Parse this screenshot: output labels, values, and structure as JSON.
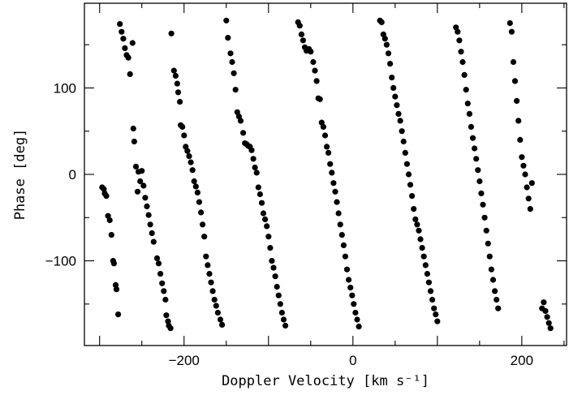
{
  "chart_data": {
    "type": "scatter",
    "title": "",
    "xlabel": "Doppler Velocity [km s⁻¹]",
    "ylabel": "Phase [deg]",
    "xlim": [
      -318,
      253
    ],
    "ylim": [
      -198,
      198
    ],
    "x_ticks": [
      -200,
      0,
      200
    ],
    "y_ticks": [
      -100,
      0,
      100
    ],
    "x_tick_labels": [
      "−200",
      "0",
      "200"
    ],
    "y_tick_labels": [
      "−100",
      "0",
      "100"
    ],
    "grid": false,
    "marker_color": "#000000",
    "series": [
      {
        "points": [
          [
            -297,
            -15
          ],
          [
            -295,
            -17
          ],
          [
            -294,
            -22
          ],
          [
            -292,
            -25
          ],
          [
            -290,
            -48
          ],
          [
            -288,
            -53
          ],
          [
            -286,
            -70
          ],
          [
            -284,
            -100
          ],
          [
            -283,
            -103
          ],
          [
            -281,
            -128
          ],
          [
            -280,
            -133
          ],
          [
            -278,
            -162
          ],
          [
            -276,
            174
          ],
          [
            -274,
            165
          ],
          [
            -272,
            157
          ],
          [
            -270,
            146
          ],
          [
            -268,
            138
          ],
          [
            -266,
            135
          ],
          [
            -264,
            116
          ],
          [
            -261,
            152
          ],
          [
            -260,
            53
          ],
          [
            -259,
            38
          ],
          [
            -257,
            9
          ],
          [
            -255,
            -20
          ],
          [
            -254,
            3
          ],
          [
            -252,
            -8
          ],
          [
            -250,
            4
          ],
          [
            -248,
            -13
          ],
          [
            -246,
            -27
          ],
          [
            -244,
            -37
          ],
          [
            -242,
            -47
          ],
          [
            -240,
            -58
          ],
          [
            -238,
            -68
          ],
          [
            -236,
            -78
          ],
          [
            -232,
            -97
          ],
          [
            -230,
            -103
          ],
          [
            -228,
            -115
          ],
          [
            -226,
            -126
          ],
          [
            -224,
            -135
          ],
          [
            -222,
            -145
          ],
          [
            -221,
            -163
          ],
          [
            -219,
            -170
          ],
          [
            -218,
            -175
          ],
          [
            -216,
            -178
          ],
          [
            -215,
            163
          ],
          [
            -212,
            120
          ],
          [
            -210,
            114
          ],
          [
            -208,
            105
          ],
          [
            -207,
            95
          ],
          [
            -205,
            84
          ],
          [
            -204,
            57
          ],
          [
            -202,
            55
          ],
          [
            -200,
            45
          ],
          [
            -198,
            32
          ],
          [
            -196,
            27
          ],
          [
            -194,
            21
          ],
          [
            -192,
            14
          ],
          [
            -190,
            5
          ],
          [
            -188,
            -8
          ],
          [
            -186,
            -14
          ],
          [
            -184,
            -21
          ],
          [
            -182,
            -32
          ],
          [
            -180,
            -44
          ],
          [
            -178,
            -58
          ],
          [
            -176,
            -72
          ],
          [
            -174,
            -95
          ],
          [
            -172,
            -105
          ],
          [
            -170,
            -115
          ],
          [
            -168,
            -125
          ],
          [
            -166,
            -135
          ],
          [
            -164,
            -145
          ],
          [
            -162,
            -152
          ],
          [
            -160,
            -160
          ],
          [
            -157,
            -168
          ],
          [
            -155,
            -174
          ],
          [
            -150,
            178
          ],
          [
            -148,
            158
          ],
          [
            -145,
            140
          ],
          [
            -143,
            130
          ],
          [
            -141,
            117
          ],
          [
            -139,
            98
          ],
          [
            -137,
            72
          ],
          [
            -135,
            67
          ],
          [
            -133,
            62
          ],
          [
            -130,
            48
          ],
          [
            -128,
            36
          ],
          [
            -126,
            35
          ],
          [
            -124,
            33
          ],
          [
            -122,
            32
          ],
          [
            -120,
            28
          ],
          [
            -118,
            18
          ],
          [
            -116,
            8
          ],
          [
            -114,
            2
          ],
          [
            -112,
            -15
          ],
          [
            -110,
            -23
          ],
          [
            -108,
            -33
          ],
          [
            -106,
            -45
          ],
          [
            -104,
            -52
          ],
          [
            -102,
            -60
          ],
          [
            -100,
            -72
          ],
          [
            -98,
            -85
          ],
          [
            -96,
            -100
          ],
          [
            -94,
            -108
          ],
          [
            -92,
            -118
          ],
          [
            -90,
            -130
          ],
          [
            -88,
            -140
          ],
          [
            -86,
            -150
          ],
          [
            -84,
            -160
          ],
          [
            -82,
            -168
          ],
          [
            -80,
            -175
          ],
          [
            -65,
            176
          ],
          [
            -63,
            172
          ],
          [
            -61,
            162
          ],
          [
            -59,
            155
          ],
          [
            -57,
            147
          ],
          [
            -55,
            143
          ],
          [
            -52,
            145
          ],
          [
            -50,
            142
          ],
          [
            -47,
            130
          ],
          [
            -45,
            120
          ],
          [
            -43,
            108
          ],
          [
            -41,
            88
          ],
          [
            -39,
            87
          ],
          [
            -37,
            60
          ],
          [
            -35,
            55
          ],
          [
            -33,
            45
          ],
          [
            -31,
            32
          ],
          [
            -29,
            25
          ],
          [
            -27,
            12
          ],
          [
            -25,
            2
          ],
          [
            -23,
            -10
          ],
          [
            -21,
            -20
          ],
          [
            -19,
            -32
          ],
          [
            -17,
            -45
          ],
          [
            -15,
            -58
          ],
          [
            -13,
            -70
          ],
          [
            -11,
            -82
          ],
          [
            -9,
            -95
          ],
          [
            -7,
            -110
          ],
          [
            -5,
            -122
          ],
          [
            -3,
            -131
          ],
          [
            -1,
            -140
          ],
          [
            1,
            -150
          ],
          [
            3,
            -160
          ],
          [
            5,
            -168
          ],
          [
            7,
            -176
          ],
          [
            32,
            178
          ],
          [
            34,
            176
          ],
          [
            36,
            162
          ],
          [
            38,
            157
          ],
          [
            40,
            150
          ],
          [
            42,
            140
          ],
          [
            44,
            128
          ],
          [
            46,
            112
          ],
          [
            48,
            100
          ],
          [
            50,
            90
          ],
          [
            52,
            80
          ],
          [
            54,
            70
          ],
          [
            56,
            62
          ],
          [
            58,
            50
          ],
          [
            60,
            38
          ],
          [
            62,
            25
          ],
          [
            64,
            12
          ],
          [
            66,
            0
          ],
          [
            68,
            -12
          ],
          [
            70,
            -25
          ],
          [
            72,
            -40
          ],
          [
            74,
            -52
          ],
          [
            76,
            -58
          ],
          [
            78,
            -65
          ],
          [
            80,
            -75
          ],
          [
            82,
            -85
          ],
          [
            84,
            -95
          ],
          [
            86,
            -105
          ],
          [
            88,
            -115
          ],
          [
            90,
            -125
          ],
          [
            92,
            -135
          ],
          [
            94,
            -145
          ],
          [
            96,
            -155
          ],
          [
            98,
            -162
          ],
          [
            100,
            -170
          ],
          [
            122,
            170
          ],
          [
            124,
            165
          ],
          [
            126,
            155
          ],
          [
            128,
            142
          ],
          [
            130,
            130
          ],
          [
            132,
            115
          ],
          [
            134,
            98
          ],
          [
            136,
            82
          ],
          [
            138,
            70
          ],
          [
            140,
            55
          ],
          [
            142,
            42
          ],
          [
            144,
            30
          ],
          [
            146,
            18
          ],
          [
            148,
            5
          ],
          [
            150,
            -8
          ],
          [
            152,
            -22
          ],
          [
            154,
            -35
          ],
          [
            156,
            -50
          ],
          [
            158,
            -65
          ],
          [
            160,
            -80
          ],
          [
            162,
            -95
          ],
          [
            164,
            -110
          ],
          [
            166,
            -122
          ],
          [
            168,
            -135
          ],
          [
            170,
            -145
          ],
          [
            172,
            -155
          ],
          [
            186,
            175
          ],
          [
            188,
            165
          ],
          [
            190,
            130
          ],
          [
            192,
            108
          ],
          [
            194,
            85
          ],
          [
            196,
            62
          ],
          [
            198,
            40
          ],
          [
            200,
            20
          ],
          [
            202,
            10
          ],
          [
            204,
            0
          ],
          [
            206,
            -15
          ],
          [
            208,
            -28
          ],
          [
            210,
            -40
          ],
          [
            212,
            -10
          ],
          [
            224,
            -155
          ],
          [
            226,
            -148
          ],
          [
            228,
            -158
          ],
          [
            230,
            -165
          ],
          [
            232,
            -172
          ],
          [
            234,
            -178
          ]
        ]
      }
    ]
  }
}
